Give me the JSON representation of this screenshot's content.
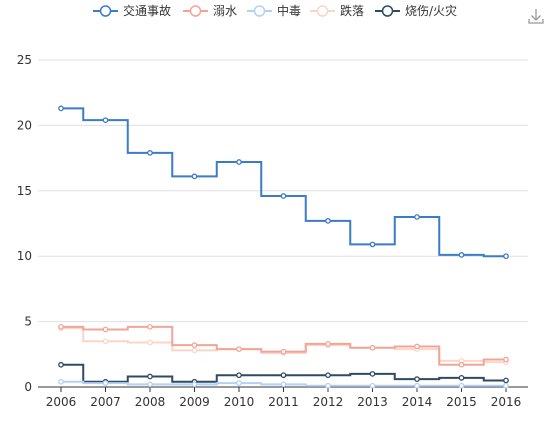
{
  "toolbox": {
    "save_icon": "download-icon"
  },
  "chart_data": {
    "type": "line",
    "step": true,
    "title": "",
    "xlabel": "",
    "ylabel": "",
    "categories": [
      "2006",
      "2007",
      "2008",
      "2009",
      "2010",
      "2011",
      "2012",
      "2013",
      "2014",
      "2015",
      "2016"
    ],
    "ylim": [
      0,
      25
    ],
    "yticks": [
      0,
      5,
      10,
      15,
      20,
      25
    ],
    "grid": true,
    "legend_position": "top",
    "series": [
      {
        "name": "交通事故",
        "color": "#3a7cc5",
        "values": [
          21.3,
          20.4,
          17.9,
          16.1,
          17.2,
          14.6,
          12.7,
          10.9,
          13.0,
          10.1,
          10.0
        ]
      },
      {
        "name": "溺水",
        "color": "#f2a597",
        "values": [
          4.6,
          4.4,
          4.6,
          3.2,
          2.9,
          2.7,
          3.3,
          3.0,
          3.1,
          1.7,
          2.1
        ]
      },
      {
        "name": "中毒",
        "color": "#b3d1f5",
        "values": [
          0.4,
          0.3,
          0.2,
          0.2,
          0.3,
          0.2,
          0.1,
          0.1,
          0.1,
          0.1,
          0.1
        ]
      },
      {
        "name": "跌落",
        "color": "#fbd5c7",
        "values": [
          4.5,
          3.5,
          3.4,
          2.8,
          2.9,
          2.6,
          3.2,
          3.0,
          2.9,
          2.0,
          1.9
        ]
      },
      {
        "name": "烧伤/火灾",
        "color": "#2f4a63",
        "values": [
          1.7,
          0.4,
          0.8,
          0.4,
          0.9,
          0.9,
          0.9,
          1.0,
          0.6,
          0.7,
          0.5
        ]
      }
    ]
  }
}
